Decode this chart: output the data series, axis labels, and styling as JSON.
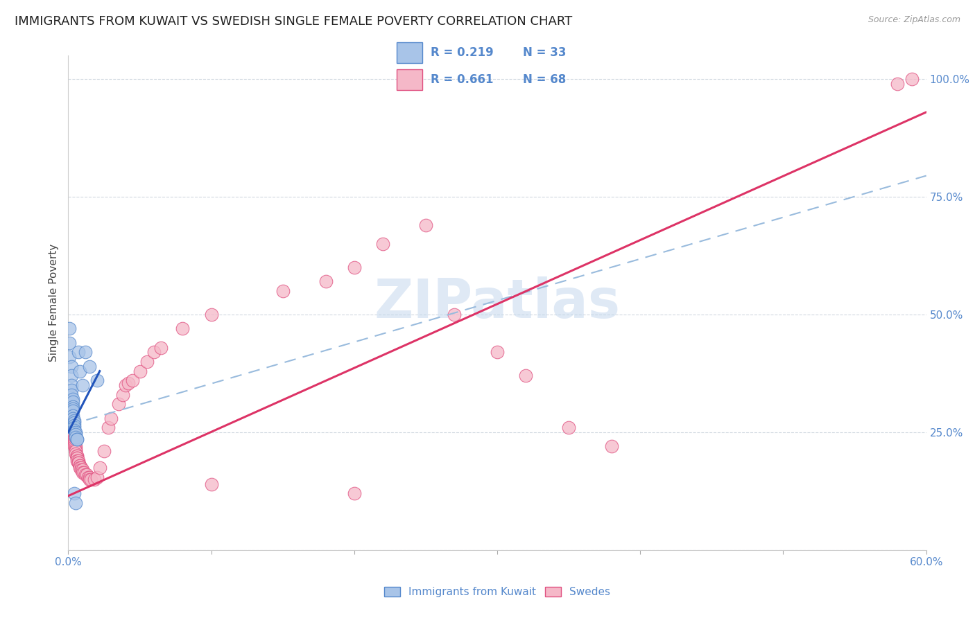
{
  "title": "IMMIGRANTS FROM KUWAIT VS SWEDISH SINGLE FEMALE POVERTY CORRELATION CHART",
  "source": "Source: ZipAtlas.com",
  "ylabel": "Single Female Poverty",
  "legend_label_blue": "Immigrants from Kuwait",
  "legend_label_pink": "Swedes",
  "blue_scatter_color": "#a8c4e8",
  "blue_edge_color": "#5588cc",
  "pink_scatter_color": "#f5b8c8",
  "pink_edge_color": "#e05080",
  "blue_line_color": "#2255bb",
  "pink_line_color": "#dd3366",
  "dashed_line_color": "#99bbdd",
  "watermark": "ZIPatlas",
  "blue_scatter": [
    [
      0.001,
      0.47
    ],
    [
      0.001,
      0.44
    ],
    [
      0.001,
      0.41
    ],
    [
      0.002,
      0.39
    ],
    [
      0.002,
      0.37
    ],
    [
      0.002,
      0.35
    ],
    [
      0.002,
      0.34
    ],
    [
      0.002,
      0.33
    ],
    [
      0.003,
      0.32
    ],
    [
      0.003,
      0.315
    ],
    [
      0.003,
      0.305
    ],
    [
      0.003,
      0.3
    ],
    [
      0.003,
      0.295
    ],
    [
      0.003,
      0.285
    ],
    [
      0.003,
      0.28
    ],
    [
      0.004,
      0.275
    ],
    [
      0.004,
      0.27
    ],
    [
      0.004,
      0.265
    ],
    [
      0.004,
      0.26
    ],
    [
      0.004,
      0.255
    ],
    [
      0.005,
      0.25
    ],
    [
      0.005,
      0.245
    ],
    [
      0.005,
      0.24
    ],
    [
      0.006,
      0.235
    ],
    [
      0.006,
      0.235
    ],
    [
      0.007,
      0.42
    ],
    [
      0.008,
      0.38
    ],
    [
      0.01,
      0.35
    ],
    [
      0.012,
      0.42
    ],
    [
      0.015,
      0.39
    ],
    [
      0.02,
      0.36
    ],
    [
      0.004,
      0.12
    ],
    [
      0.005,
      0.1
    ]
  ],
  "pink_scatter": [
    [
      0.002,
      0.28
    ],
    [
      0.002,
      0.27
    ],
    [
      0.003,
      0.265
    ],
    [
      0.003,
      0.255
    ],
    [
      0.003,
      0.25
    ],
    [
      0.003,
      0.245
    ],
    [
      0.004,
      0.24
    ],
    [
      0.004,
      0.235
    ],
    [
      0.004,
      0.23
    ],
    [
      0.004,
      0.225
    ],
    [
      0.004,
      0.22
    ],
    [
      0.005,
      0.22
    ],
    [
      0.005,
      0.215
    ],
    [
      0.005,
      0.21
    ],
    [
      0.005,
      0.21
    ],
    [
      0.005,
      0.205
    ],
    [
      0.006,
      0.2
    ],
    [
      0.006,
      0.2
    ],
    [
      0.006,
      0.195
    ],
    [
      0.006,
      0.195
    ],
    [
      0.006,
      0.19
    ],
    [
      0.007,
      0.19
    ],
    [
      0.007,
      0.185
    ],
    [
      0.007,
      0.185
    ],
    [
      0.008,
      0.18
    ],
    [
      0.008,
      0.18
    ],
    [
      0.008,
      0.175
    ],
    [
      0.009,
      0.175
    ],
    [
      0.009,
      0.17
    ],
    [
      0.01,
      0.17
    ],
    [
      0.01,
      0.165
    ],
    [
      0.011,
      0.165
    ],
    [
      0.012,
      0.16
    ],
    [
      0.013,
      0.16
    ],
    [
      0.014,
      0.155
    ],
    [
      0.015,
      0.155
    ],
    [
      0.015,
      0.15
    ],
    [
      0.016,
      0.15
    ],
    [
      0.018,
      0.15
    ],
    [
      0.02,
      0.155
    ],
    [
      0.022,
      0.175
    ],
    [
      0.025,
      0.21
    ],
    [
      0.028,
      0.26
    ],
    [
      0.03,
      0.28
    ],
    [
      0.035,
      0.31
    ],
    [
      0.038,
      0.33
    ],
    [
      0.04,
      0.35
    ],
    [
      0.042,
      0.355
    ],
    [
      0.045,
      0.36
    ],
    [
      0.05,
      0.38
    ],
    [
      0.055,
      0.4
    ],
    [
      0.06,
      0.42
    ],
    [
      0.065,
      0.43
    ],
    [
      0.08,
      0.47
    ],
    [
      0.1,
      0.5
    ],
    [
      0.15,
      0.55
    ],
    [
      0.18,
      0.57
    ],
    [
      0.2,
      0.6
    ],
    [
      0.22,
      0.65
    ],
    [
      0.25,
      0.69
    ],
    [
      0.27,
      0.5
    ],
    [
      0.3,
      0.42
    ],
    [
      0.32,
      0.37
    ],
    [
      0.35,
      0.26
    ],
    [
      0.38,
      0.22
    ],
    [
      0.1,
      0.14
    ],
    [
      0.2,
      0.12
    ],
    [
      0.59,
      1.0
    ],
    [
      0.58,
      0.99
    ]
  ],
  "xlim": [
    0.0,
    0.6
  ],
  "ylim": [
    0.0,
    1.05
  ],
  "blue_trendline": [
    [
      0.0,
      0.25
    ],
    [
      0.022,
      0.38
    ]
  ],
  "pink_trendline": [
    [
      0.0,
      0.115
    ],
    [
      0.6,
      0.93
    ]
  ],
  "gray_dashed_trendline": [
    [
      0.0,
      0.265
    ],
    [
      0.6,
      0.795
    ]
  ],
  "grid_color": "#d0d8e0",
  "background_color": "#ffffff",
  "title_fontsize": 13,
  "axis_label_fontsize": 11
}
